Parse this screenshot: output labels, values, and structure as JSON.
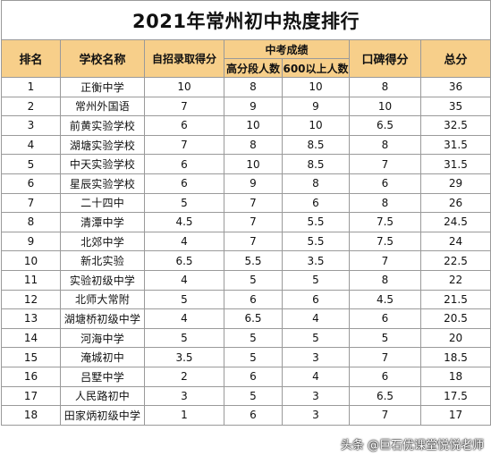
{
  "title": "2021年常州初中热度排行",
  "headers": {
    "rank": "排名",
    "school": "学校名称",
    "self_enroll": "自招录取得分",
    "zhongkao_group": "中考成绩",
    "high_score_count": "高分段人数",
    "above_600_count": "600以上人数",
    "reputation": "口碑得分",
    "total": "总分"
  },
  "rows": [
    {
      "rank": "1",
      "school": "正衡中学",
      "self_enroll": "10",
      "high_score": "8",
      "above600": "10",
      "reputation": "8",
      "total": "36"
    },
    {
      "rank": "2",
      "school": "常州外国语",
      "self_enroll": "7",
      "high_score": "9",
      "above600": "9",
      "reputation": "10",
      "total": "35"
    },
    {
      "rank": "3",
      "school": "前黄实验学校",
      "self_enroll": "6",
      "high_score": "10",
      "above600": "10",
      "reputation": "6.5",
      "total": "32.5"
    },
    {
      "rank": "4",
      "school": "湖塘实验学校",
      "self_enroll": "7",
      "high_score": "8",
      "above600": "8.5",
      "reputation": "8",
      "total": "31.5"
    },
    {
      "rank": "5",
      "school": "中天实验学校",
      "self_enroll": "6",
      "high_score": "10",
      "above600": "8.5",
      "reputation": "7",
      "total": "31.5"
    },
    {
      "rank": "6",
      "school": "星辰实验学校",
      "self_enroll": "6",
      "high_score": "9",
      "above600": "8",
      "reputation": "6",
      "total": "29"
    },
    {
      "rank": "7",
      "school": "二十四中",
      "self_enroll": "5",
      "high_score": "7",
      "above600": "6",
      "reputation": "8",
      "total": "26"
    },
    {
      "rank": "8",
      "school": "清潭中学",
      "self_enroll": "4.5",
      "high_score": "7",
      "above600": "5.5",
      "reputation": "7.5",
      "total": "24.5"
    },
    {
      "rank": "9",
      "school": "北郊中学",
      "self_enroll": "4",
      "high_score": "7",
      "above600": "5.5",
      "reputation": "7.5",
      "total": "24"
    },
    {
      "rank": "10",
      "school": "新北实验",
      "self_enroll": "6.5",
      "high_score": "5.5",
      "above600": "3.5",
      "reputation": "7",
      "total": "22.5"
    },
    {
      "rank": "11",
      "school": "实验初级中学",
      "self_enroll": "4",
      "high_score": "5",
      "above600": "5",
      "reputation": "8",
      "total": "22"
    },
    {
      "rank": "12",
      "school": "北师大常附",
      "self_enroll": "5",
      "high_score": "6",
      "above600": "6",
      "reputation": "4.5",
      "total": "21.5"
    },
    {
      "rank": "13",
      "school": "湖塘桥初级中学",
      "self_enroll": "4",
      "high_score": "6.5",
      "above600": "4",
      "reputation": "6",
      "total": "20.5"
    },
    {
      "rank": "14",
      "school": "河海中学",
      "self_enroll": "5",
      "high_score": "5",
      "above600": "5",
      "reputation": "5",
      "total": "20"
    },
    {
      "rank": "15",
      "school": "淹城初中",
      "self_enroll": "3.5",
      "high_score": "5",
      "above600": "3",
      "reputation": "7",
      "total": "18.5"
    },
    {
      "rank": "16",
      "school": "吕墅中学",
      "self_enroll": "2",
      "high_score": "6",
      "above600": "4",
      "reputation": "6",
      "total": "18"
    },
    {
      "rank": "17",
      "school": "人民路初中",
      "self_enroll": "3",
      "high_score": "5",
      "above600": "3",
      "reputation": "6.5",
      "total": "17.5"
    },
    {
      "rank": "18",
      "school": "田家炳初级中学",
      "self_enroll": "1",
      "high_score": "6",
      "above600": "3",
      "reputation": "7",
      "total": "17"
    }
  ],
  "watermark": "头条 @巨石优课堂悦悦老师",
  "colors": {
    "header_bg": "#f7cf8a",
    "border": "#9a9a9a"
  }
}
